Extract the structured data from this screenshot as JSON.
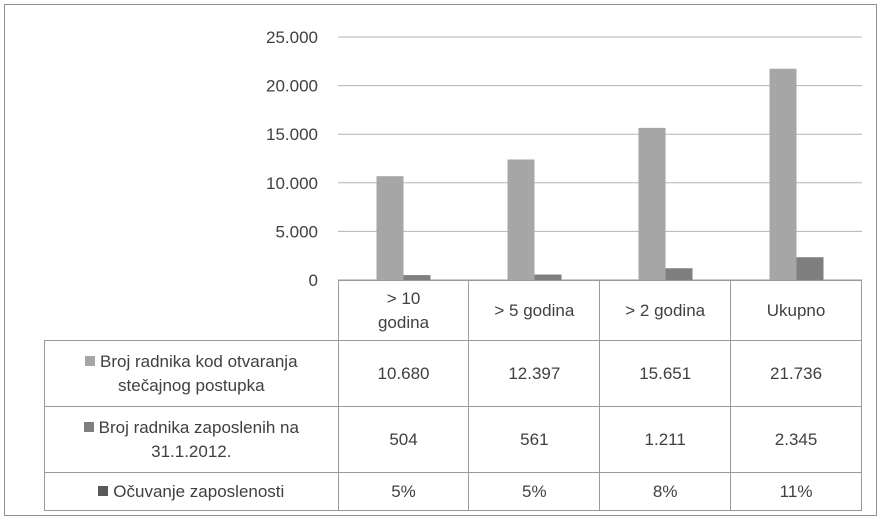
{
  "chart_data": {
    "type": "bar",
    "categories": [
      "> 10 godina",
      "> 5 godina",
      "> 2 godina",
      "Ukupno"
    ],
    "category_labels": [
      [
        "> 10",
        "godina"
      ],
      [
        "> 5 godina"
      ],
      [
        "> 2 godina"
      ],
      [
        "Ukupno"
      ]
    ],
    "series": [
      {
        "name": "Broj radnika kod otvaranja stečajnog postupka",
        "name_lines": [
          "Broj radnika kod otvaranja",
          "stečajnog postupka"
        ],
        "values": [
          10680,
          12397,
          15651,
          21736
        ],
        "display": [
          "10.680",
          "12.397",
          "15.651",
          "21.736"
        ],
        "color": "#a6a6a6",
        "plotted": true
      },
      {
        "name": "Broj radnika zaposlenih na 31.1.2012.",
        "name_lines": [
          "Broj radnika zaposlenih na",
          "31.1.2012."
        ],
        "values": [
          504,
          561,
          1211,
          2345
        ],
        "display": [
          "504",
          "561",
          "1.211",
          "2.345"
        ],
        "color": "#7f7f7f",
        "plotted": true
      },
      {
        "name": "Očuvanje zaposlenosti",
        "name_lines": [
          "Očuvanje zaposlenosti"
        ],
        "values": [
          5,
          5,
          8,
          11
        ],
        "display": [
          "5%",
          "5%",
          "8%",
          "11%"
        ],
        "color": "#595959",
        "plotted": false
      }
    ],
    "ylim": [
      0,
      25000
    ],
    "yticks": [
      0,
      5000,
      10000,
      15000,
      20000,
      25000
    ],
    "ytick_labels": [
      "0",
      "5.000",
      "10.000",
      "15.000",
      "20.000",
      "25.000"
    ],
    "grid": true,
    "legend": "data-table"
  }
}
